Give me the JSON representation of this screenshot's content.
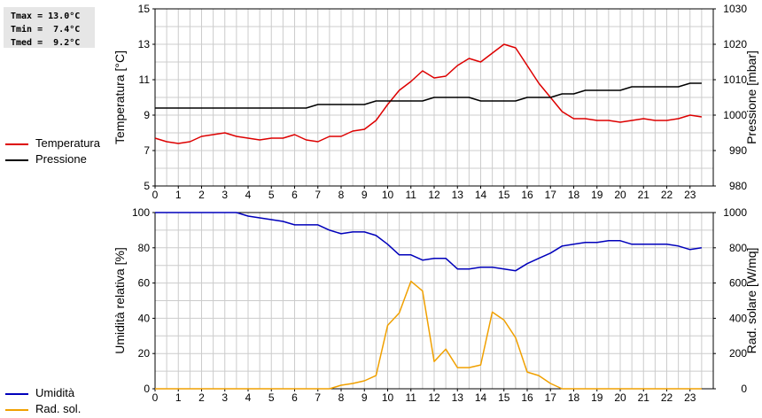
{
  "stats": [
    "Tmax = 13.0°C",
    "Tmin =  7.4°C",
    "Tmed =  9.2°C"
  ],
  "colors": {
    "temperature": "#dd0000",
    "pressure": "#000000",
    "humidity": "#0000bb",
    "radiation": "#f0a000",
    "grid": "#cccccc"
  },
  "chart_data": [
    {
      "type": "line",
      "title": "",
      "xlabel": "",
      "x_ticks": [
        0,
        1,
        2,
        3,
        4,
        5,
        6,
        7,
        8,
        9,
        10,
        11,
        12,
        13,
        14,
        15,
        16,
        17,
        18,
        19,
        20,
        21,
        22,
        23
      ],
      "xlim": [
        0,
        24
      ],
      "ylabel": "Temperatura [°C]",
      "ylim": [
        5,
        15
      ],
      "y_ticks": [
        5,
        7,
        9,
        11,
        13,
        15
      ],
      "y2label": "Pressione [mbar]",
      "y2lim": [
        980,
        1030
      ],
      "y2_ticks": [
        980,
        990,
        1000,
        1010,
        1020,
        1030
      ],
      "grid": true,
      "legend_position": "left",
      "series": [
        {
          "name": "Temperatura",
          "axis": "left",
          "color": "#dd0000",
          "x": [
            0,
            0.5,
            1,
            1.5,
            2,
            2.5,
            3,
            3.5,
            4,
            4.5,
            5,
            5.5,
            6,
            6.5,
            7,
            7.5,
            8,
            8.5,
            9,
            9.5,
            10,
            10.5,
            11,
            11.5,
            12,
            12.5,
            13,
            13.5,
            14,
            14.5,
            15,
            15.5,
            16,
            16.5,
            17,
            17.5,
            18,
            18.5,
            19,
            19.5,
            20,
            20.5,
            21,
            21.5,
            22,
            22.5,
            23,
            23.5
          ],
          "y": [
            7.7,
            7.5,
            7.4,
            7.5,
            7.8,
            7.9,
            8.0,
            7.8,
            7.7,
            7.6,
            7.7,
            7.7,
            7.9,
            7.6,
            7.5,
            7.8,
            7.8,
            8.1,
            8.2,
            8.7,
            9.6,
            10.4,
            10.9,
            11.5,
            11.1,
            11.2,
            11.8,
            12.2,
            12.0,
            12.5,
            13.0,
            12.8,
            11.8,
            10.8,
            10.0,
            9.2,
            8.8,
            8.8,
            8.7,
            8.7,
            8.6,
            8.7,
            8.8,
            8.7,
            8.7,
            8.8,
            9.0,
            8.9
          ]
        },
        {
          "name": "Pressione",
          "axis": "right",
          "color": "#000000",
          "x": [
            0,
            6.5,
            7,
            9,
            9.5,
            11.5,
            12,
            13.5,
            14,
            15.5,
            16,
            17,
            17.5,
            18,
            18.5,
            20,
            20.5,
            22.5,
            23,
            23.5
          ],
          "y": [
            1002,
            1002,
            1003,
            1003,
            1004,
            1004,
            1005,
            1005,
            1004,
            1004,
            1005,
            1005,
            1006,
            1006,
            1007,
            1007,
            1008,
            1008,
            1009,
            1009
          ]
        }
      ]
    },
    {
      "type": "line",
      "title": "",
      "xlabel": "",
      "x_ticks": [
        0,
        1,
        2,
        3,
        4,
        5,
        6,
        7,
        8,
        9,
        10,
        11,
        12,
        13,
        14,
        15,
        16,
        17,
        18,
        19,
        20,
        21,
        22,
        23
      ],
      "xlim": [
        0,
        24
      ],
      "ylabel": "Umidità relativa [%]",
      "ylim": [
        0,
        100
      ],
      "y_ticks": [
        0,
        20,
        40,
        60,
        80,
        100
      ],
      "y2label": "Rad. solare [W/mq]",
      "y2lim": [
        0,
        1000
      ],
      "y2_ticks": [
        0,
        200,
        400,
        600,
        800,
        1000
      ],
      "grid": true,
      "legend_position": "left",
      "series": [
        {
          "name": "Umidità",
          "axis": "left",
          "color": "#0000bb",
          "x": [
            0,
            3.5,
            4,
            5,
            5.5,
            6,
            7,
            7.5,
            8,
            8.5,
            9,
            9.5,
            10,
            10.5,
            11,
            11.5,
            12,
            12.5,
            13,
            13.5,
            14,
            14.5,
            15,
            15.5,
            16,
            16.5,
            17,
            17.5,
            18,
            18.5,
            19,
            19.5,
            20,
            20.5,
            21,
            21.5,
            22,
            22.5,
            23,
            23.5
          ],
          "y": [
            100,
            100,
            98,
            96,
            95,
            93,
            93,
            90,
            88,
            89,
            89,
            87,
            82,
            76,
            76,
            73,
            74,
            74,
            68,
            68,
            69,
            69,
            68,
            67,
            71,
            74,
            77,
            81,
            82,
            83,
            83,
            84,
            84,
            82,
            82,
            82,
            82,
            81,
            79,
            80
          ]
        },
        {
          "name": "Rad. sol.",
          "axis": "right",
          "color": "#f0a000",
          "x": [
            0,
            7.5,
            8,
            8.5,
            9,
            9.5,
            10,
            10.5,
            11,
            11.5,
            12,
            12.5,
            13,
            13.5,
            14,
            14.5,
            15,
            15.5,
            16,
            16.5,
            17,
            17.5,
            23.5
          ],
          "y": [
            0,
            0,
            20,
            30,
            45,
            75,
            360,
            430,
            610,
            555,
            155,
            225,
            120,
            120,
            135,
            435,
            390,
            290,
            95,
            75,
            30,
            0,
            0
          ]
        }
      ]
    }
  ]
}
